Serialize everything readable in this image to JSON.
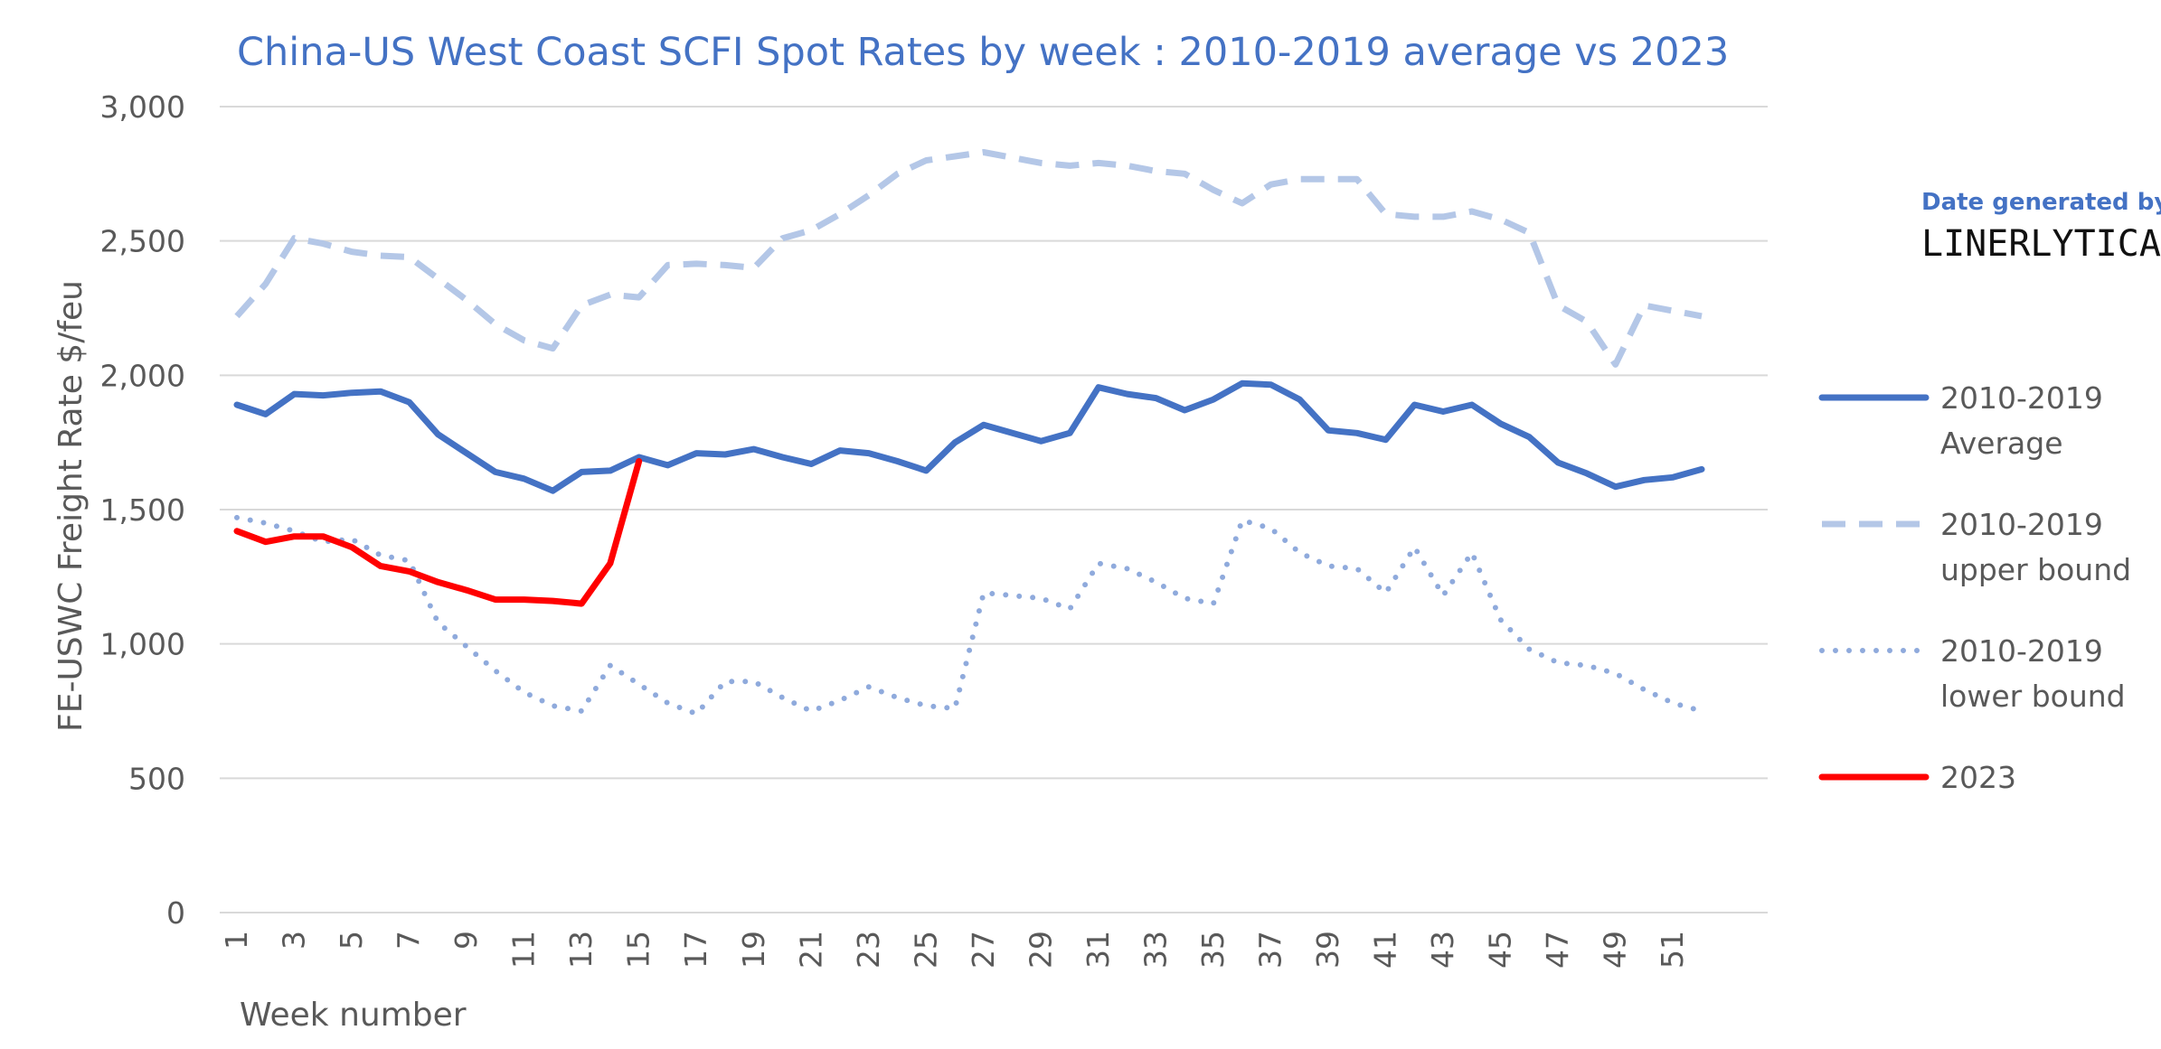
{
  "chart_data": {
    "type": "line",
    "title": "China-US West Coast SCFI Spot Rates by week : 2010-2019 average vs 2023",
    "xlabel": "Week number",
    "ylabel": "FE-USWC Freight Rate $/feu",
    "ylim": [
      0,
      3000
    ],
    "yticks": [
      0,
      500,
      1000,
      1500,
      2000,
      2500,
      3000
    ],
    "ytick_labels": [
      "0",
      "500",
      "1,000",
      "1,500",
      "2,000",
      "2,500",
      "3,000"
    ],
    "xticks": [
      1,
      3,
      5,
      7,
      9,
      11,
      13,
      15,
      17,
      19,
      21,
      23,
      25,
      27,
      29,
      31,
      33,
      35,
      37,
      39,
      41,
      43,
      45,
      47,
      49,
      51
    ],
    "xlim": [
      1,
      52
    ],
    "grid": "horizontal",
    "legend_position": "right",
    "series": [
      {
        "name": "2010-2019 Average",
        "legend_lines": [
          "2010-2019",
          "Average"
        ],
        "color": "#4472C4",
        "style": "solid",
        "x": [
          1,
          2,
          3,
          4,
          5,
          6,
          7,
          8,
          9,
          10,
          11,
          12,
          13,
          14,
          15,
          16,
          17,
          18,
          19,
          20,
          21,
          22,
          23,
          24,
          25,
          26,
          27,
          28,
          29,
          30,
          31,
          32,
          33,
          34,
          35,
          36,
          37,
          38,
          39,
          40,
          41,
          42,
          43,
          44,
          45,
          46,
          47,
          48,
          49,
          50,
          51,
          52
        ],
        "values": [
          1890,
          1855,
          1930,
          1925,
          1935,
          1940,
          1900,
          1780,
          1710,
          1640,
          1615,
          1570,
          1640,
          1645,
          1695,
          1665,
          1710,
          1705,
          1725,
          1695,
          1670,
          1720,
          1710,
          1680,
          1645,
          1750,
          1815,
          1785,
          1755,
          1785,
          1955,
          1930,
          1915,
          1870,
          1910,
          1970,
          1965,
          1910,
          1795,
          1785,
          1760,
          1890,
          1865,
          1890,
          1820,
          1770,
          1675,
          1635,
          1585,
          1610,
          1620,
          1650
        ]
      },
      {
        "name": "2010-2019 upper bound",
        "legend_lines": [
          "2010-2019",
          "upper bound"
        ],
        "color": "#B4C7E7",
        "style": "dashed",
        "x": [
          1,
          2,
          3,
          4,
          5,
          6,
          7,
          8,
          9,
          10,
          11,
          12,
          13,
          14,
          15,
          16,
          17,
          18,
          19,
          20,
          21,
          22,
          23,
          24,
          25,
          26,
          27,
          28,
          29,
          30,
          31,
          32,
          33,
          34,
          35,
          36,
          37,
          38,
          39,
          40,
          41,
          42,
          43,
          44,
          45,
          46,
          47,
          48,
          49,
          50,
          51,
          52
        ],
        "values": [
          2220,
          2340,
          2510,
          2490,
          2460,
          2445,
          2440,
          2360,
          2280,
          2190,
          2130,
          2100,
          2260,
          2300,
          2290,
          2410,
          2415,
          2410,
          2400,
          2510,
          2540,
          2600,
          2670,
          2750,
          2800,
          2815,
          2830,
          2810,
          2790,
          2780,
          2790,
          2780,
          2760,
          2750,
          2690,
          2640,
          2710,
          2730,
          2730,
          2730,
          2600,
          2590,
          2590,
          2610,
          2580,
          2530,
          2260,
          2200,
          2040,
          2260,
          2240,
          2220
        ]
      },
      {
        "name": "2010-2019 lower bound",
        "legend_lines": [
          "2010-2019",
          "lower bound"
        ],
        "color": "#8FAADC",
        "style": "dotted",
        "x": [
          1,
          2,
          3,
          4,
          5,
          6,
          7,
          8,
          9,
          10,
          11,
          12,
          13,
          14,
          15,
          16,
          17,
          18,
          19,
          20,
          21,
          22,
          23,
          24,
          25,
          26,
          27,
          28,
          29,
          30,
          31,
          32,
          33,
          34,
          35,
          36,
          37,
          38,
          39,
          40,
          41,
          42,
          43,
          44,
          45,
          46,
          47,
          48,
          49,
          50,
          51,
          52
        ],
        "values": [
          1470,
          1450,
          1420,
          1380,
          1390,
          1330,
          1310,
          1080,
          990,
          900,
          820,
          770,
          750,
          920,
          850,
          780,
          740,
          860,
          860,
          800,
          750,
          790,
          840,
          800,
          770,
          760,
          1190,
          1180,
          1170,
          1130,
          1300,
          1280,
          1230,
          1170,
          1150,
          1460,
          1430,
          1340,
          1290,
          1280,
          1190,
          1360,
          1180,
          1340,
          1090,
          980,
          930,
          920,
          890,
          830,
          780,
          750
        ]
      },
      {
        "name": "2023",
        "legend_lines": [
          "2023"
        ],
        "color": "#FF0000",
        "style": "solid",
        "x": [
          1,
          2,
          3,
          4,
          5,
          6,
          7,
          8,
          9,
          10,
          11,
          12,
          13,
          14,
          15
        ],
        "values": [
          1420,
          1380,
          1400,
          1400,
          1360,
          1290,
          1270,
          1230,
          1200,
          1165,
          1165,
          1160,
          1150,
          1300,
          1680
        ]
      }
    ]
  },
  "credit": {
    "label": "Date generated by",
    "brand": "LINERLYTICA"
  }
}
